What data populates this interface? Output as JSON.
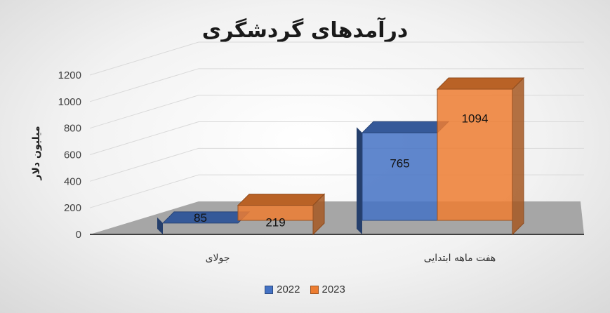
{
  "chart_data": {
    "type": "bar",
    "title": "درآمدهای گردشگری",
    "ylabel": "میلیون دلار",
    "xlabel": "",
    "categories": [
      "جولای",
      "هفت ماهه ابتدایی"
    ],
    "yticks": [
      "0",
      "200",
      "400",
      "600",
      "800",
      "1000",
      "1200"
    ],
    "ylim": [
      0,
      1200
    ],
    "series": [
      {
        "name": "2022",
        "values": [
          85,
          765
        ],
        "labels": [
          "85",
          "765"
        ],
        "color": "#4472C4"
      },
      {
        "name": "2023",
        "values": [
          219,
          1094
        ],
        "labels": [
          "219",
          "1094"
        ],
        "color": "#ED7D31"
      }
    ],
    "style": "3d-column",
    "grid": true,
    "legend_position": "bottom"
  }
}
